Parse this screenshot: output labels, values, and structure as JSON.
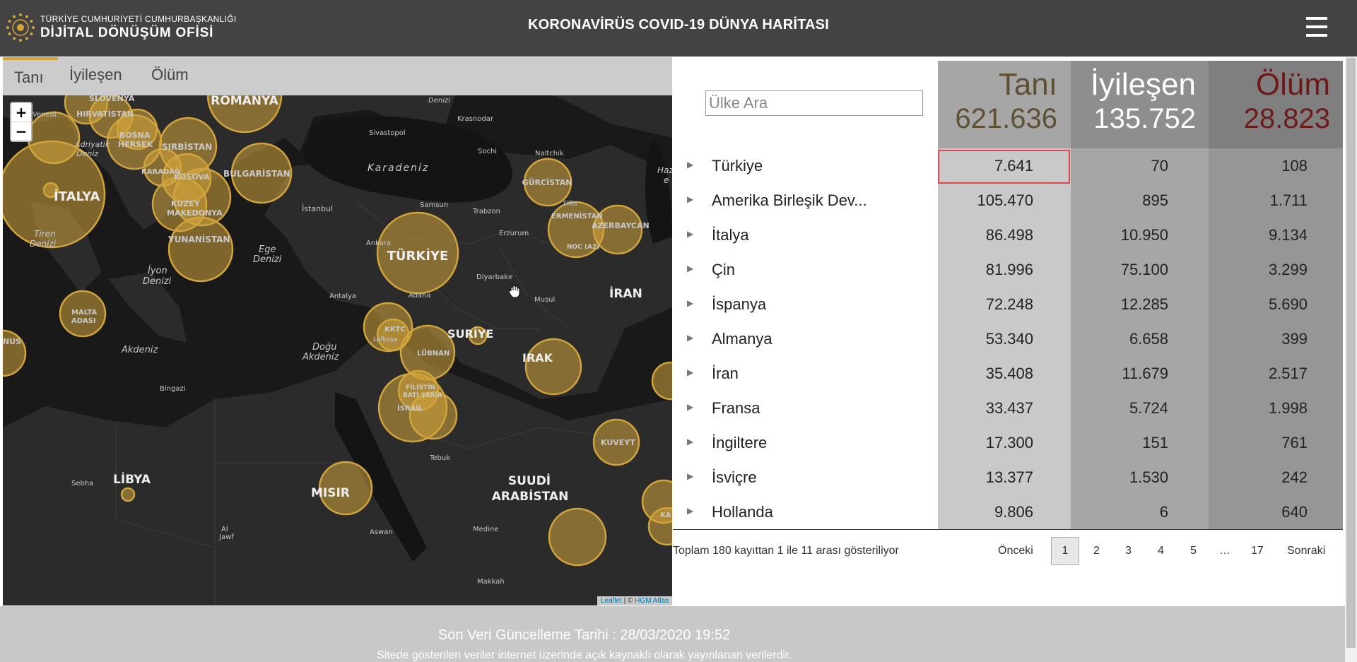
{
  "header": {
    "logo_line1": "TÜRKİYE CUMHURİYETİ CUMHURBAŞKANLIĞI",
    "logo_line2": "DİJİTAL DÖNÜŞÜM OFİSİ",
    "title": "KORONAVİRÜS COVID-19 DÜNYA HARİTASI",
    "menu_icon": "hamburger-menu-icon"
  },
  "map": {
    "tabs": [
      "Tanı",
      "İyileşen",
      "Ölüm"
    ],
    "active_tab": "Tanı",
    "zoom_in": "+",
    "zoom_out": "−",
    "attribution_leaflet": "Leaflet",
    "attribution_sep": " | © ",
    "attribution_atlas": "HGM Atlas",
    "labels": {
      "romanya": "ROMANYA",
      "venedi": "Venedi",
      "hirvatistan": "HIRVATİSTAN",
      "slovenya": "SLOVENYA",
      "bosna": "BOSNA",
      "hersek": "HERSEK",
      "sirbistan": "SIRBİSTAN",
      "karadag": "KARADAĞ",
      "kosova": "KOSOVA",
      "bulgaristan": "BULGARİSTAN",
      "kuzey": "KUZEY",
      "makedonya": "MAKEDONYA",
      "yunanistan": "YUNANİSTAN",
      "italya": "İTALYA",
      "tiren1": "Tiren",
      "tiren2": "Denizi",
      "adriyatik1": "Adriyatik",
      "adriyatik2": "Deniz",
      "iyon1": "İyon",
      "iyon2": "Denizi",
      "malta1": "MALTA",
      "malta2": "ADASI",
      "nus": "NUS",
      "akdeniz": "Akdeniz",
      "bingazi": "Bingazi",
      "libya": "LİBYA",
      "sebha": "Sebha",
      "al1": "Al",
      "al2": "Jawf",
      "ege1": "Ege",
      "ege2": "Denizi",
      "dogu1": "Doğu",
      "dogu2": "Akdeniz",
      "istanbul": "İstanbul",
      "ankara": "Ankara",
      "antalya": "Antalya",
      "adana": "Adana",
      "turkiye": "TÜRKİYE",
      "karadeniz": "Karadeniz",
      "sivastopol": "Sivastopol",
      "denizi_top": "Denizi",
      "krasnodar": "Krasnodar",
      "sochi": "Sochi",
      "samsun": "Samsun",
      "trabzon": "Trabzon",
      "erzurum": "Erzurum",
      "diyarbakir": "Diyarbakır",
      "naltchik": "Naltchik",
      "gurcistan": "GÜRCİSTAN",
      "tiflis": "Tiflis",
      "ermenistan": "ERMENİSTAN",
      "azerbaycan": "AZERBAYCAN",
      "noc": "NOC (AZ)",
      "haz1": "Haz",
      "haz2": "e",
      "iran": "İRAN",
      "musul": "Musul",
      "suriye": "SURİYE",
      "kktc": "KKTC",
      "lefkosa": "Lefkoşa",
      "lubnan": "LÜBNAN",
      "filistin1": "FİLİSTİN",
      "filistin2": "BATI ŞERİA",
      "israil": "İSRAİL",
      "irak": "IRAK",
      "kuveyt": "KUVEYT",
      "misir": "MISIR",
      "tebuk": "Tebuk",
      "aswan": "Aswan",
      "suudi1": "SUUDİ",
      "suudi2": "ARABİSTAN",
      "medine": "Medine",
      "makkah": "Makkah",
      "ka": "KA"
    }
  },
  "table": {
    "search_placeholder": "Ülke Ara",
    "headers": [
      {
        "label": "Tanı",
        "total": "621.636",
        "color": "#5e5033"
      },
      {
        "label": "İyileşen",
        "total": "135.752",
        "color": "#ffffff"
      },
      {
        "label": "Ölüm",
        "total": "28.823",
        "color": "#6e1a19"
      }
    ],
    "rows": [
      {
        "country": "Türkiye",
        "tani": "7.641",
        "iyilesen": "70",
        "olum": "108"
      },
      {
        "country": "Amerika Birleşik Dev...",
        "tani": "105.470",
        "iyilesen": "895",
        "olum": "1.711"
      },
      {
        "country": "İtalya",
        "tani": "86.498",
        "iyilesen": "10.950",
        "olum": "9.134"
      },
      {
        "country": "Çin",
        "tani": "81.996",
        "iyilesen": "75.100",
        "olum": "3.299"
      },
      {
        "country": "İspanya",
        "tani": "72.248",
        "iyilesen": "12.285",
        "olum": "5.690"
      },
      {
        "country": "Almanya",
        "tani": "53.340",
        "iyilesen": "6.658",
        "olum": "399"
      },
      {
        "country": "İran",
        "tani": "35.408",
        "iyilesen": "11.679",
        "olum": "2.517"
      },
      {
        "country": "Fransa",
        "tani": "33.437",
        "iyilesen": "5.724",
        "olum": "1.998"
      },
      {
        "country": "İngiltere",
        "tani": "17.300",
        "iyilesen": "151",
        "olum": "761"
      },
      {
        "country": "İsviçre",
        "tani": "13.377",
        "iyilesen": "1.530",
        "olum": "242"
      },
      {
        "country": "Hollanda",
        "tani": "9.806",
        "iyilesen": "6",
        "olum": "640"
      }
    ],
    "info": "Toplam 180 kayıttan 1 ile 11 arası gösteriliyor",
    "pagination": {
      "prev": "Önceki",
      "pages": [
        "1",
        "2",
        "3",
        "4",
        "5",
        "…",
        "17"
      ],
      "active": "1",
      "next": "Sonraki"
    }
  },
  "footer": {
    "updated": "Son Veri Güncelleme Tarihi : 28/03/2020 19:52",
    "note": "Sitede gösterilen veriler internet üzerinde açık kaynaklı olarak yayınlanan verilerdir."
  },
  "colors": {
    "header_bg": "#434343",
    "bubble_fill": "#d1a43c",
    "tani_col": "#c9c9c9",
    "iyilesen_col": "#a6a6a6",
    "olum_col": "#969696",
    "highlight_border": "#e0474c"
  }
}
